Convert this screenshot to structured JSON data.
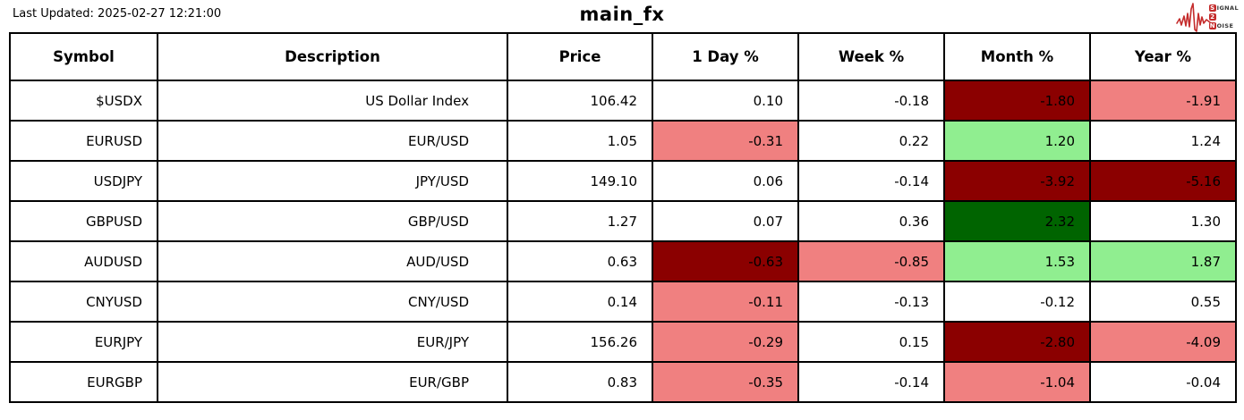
{
  "page": {
    "last_updated": "Last Updated: 2025-02-27 12:21:00",
    "title": "main_fx"
  },
  "logo": {
    "line1_badge": "S",
    "line1_rest": "IGNAL",
    "line2_badge": "2",
    "line2_rest": "",
    "line3_badge": "N",
    "line3_rest": "OISE",
    "accent_color": "#c42b2b"
  },
  "colors": {
    "white": "#ffffff",
    "dark_red": "#8b0000",
    "light_red": "#f08080",
    "light_green": "#90ee90",
    "dark_green": "#006400"
  },
  "chart_data": {
    "type": "table",
    "title": "main_fx",
    "columns": [
      "Symbol",
      "Description",
      "Price",
      "1 Day %",
      "Week %",
      "Month %",
      "Year %"
    ],
    "rows": [
      {
        "symbol": "$USDX",
        "description": "US Dollar Index",
        "price": 106.42,
        "day_pct": 0.1,
        "week_pct": -0.18,
        "month_pct": -1.8,
        "year_pct": -1.91,
        "cell_colors": {
          "day": "white",
          "week": "white",
          "month": "dark_red",
          "year": "light_red"
        }
      },
      {
        "symbol": "EURUSD",
        "description": "EUR/USD",
        "price": 1.05,
        "day_pct": -0.31,
        "week_pct": 0.22,
        "month_pct": 1.2,
        "year_pct": 1.24,
        "cell_colors": {
          "day": "light_red",
          "week": "white",
          "month": "light_green",
          "year": "white"
        }
      },
      {
        "symbol": "USDJPY",
        "description": "JPY/USD",
        "price": 149.1,
        "day_pct": 0.06,
        "week_pct": -0.14,
        "month_pct": -3.92,
        "year_pct": -5.16,
        "cell_colors": {
          "day": "white",
          "week": "white",
          "month": "dark_red",
          "year": "dark_red"
        }
      },
      {
        "symbol": "GBPUSD",
        "description": "GBP/USD",
        "price": 1.27,
        "day_pct": 0.07,
        "week_pct": 0.36,
        "month_pct": 2.32,
        "year_pct": 1.3,
        "cell_colors": {
          "day": "white",
          "week": "white",
          "month": "dark_green",
          "year": "white"
        }
      },
      {
        "symbol": "AUDUSD",
        "description": "AUD/USD",
        "price": 0.63,
        "day_pct": -0.63,
        "week_pct": -0.85,
        "month_pct": 1.53,
        "year_pct": 1.87,
        "cell_colors": {
          "day": "dark_red",
          "week": "light_red",
          "month": "light_green",
          "year": "light_green"
        }
      },
      {
        "symbol": "CNYUSD",
        "description": "CNY/USD",
        "price": 0.14,
        "day_pct": -0.11,
        "week_pct": -0.13,
        "month_pct": -0.12,
        "year_pct": 0.55,
        "cell_colors": {
          "day": "light_red",
          "week": "white",
          "month": "white",
          "year": "white"
        }
      },
      {
        "symbol": "EURJPY",
        "description": "EUR/JPY",
        "price": 156.26,
        "day_pct": -0.29,
        "week_pct": 0.15,
        "month_pct": -2.8,
        "year_pct": -4.09,
        "cell_colors": {
          "day": "light_red",
          "week": "white",
          "month": "dark_red",
          "year": "light_red"
        }
      },
      {
        "symbol": "EURGBP",
        "description": "EUR/GBP",
        "price": 0.83,
        "day_pct": -0.35,
        "week_pct": -0.14,
        "month_pct": -1.04,
        "year_pct": -0.04,
        "cell_colors": {
          "day": "light_red",
          "week": "white",
          "month": "light_red",
          "year": "white"
        }
      }
    ]
  }
}
